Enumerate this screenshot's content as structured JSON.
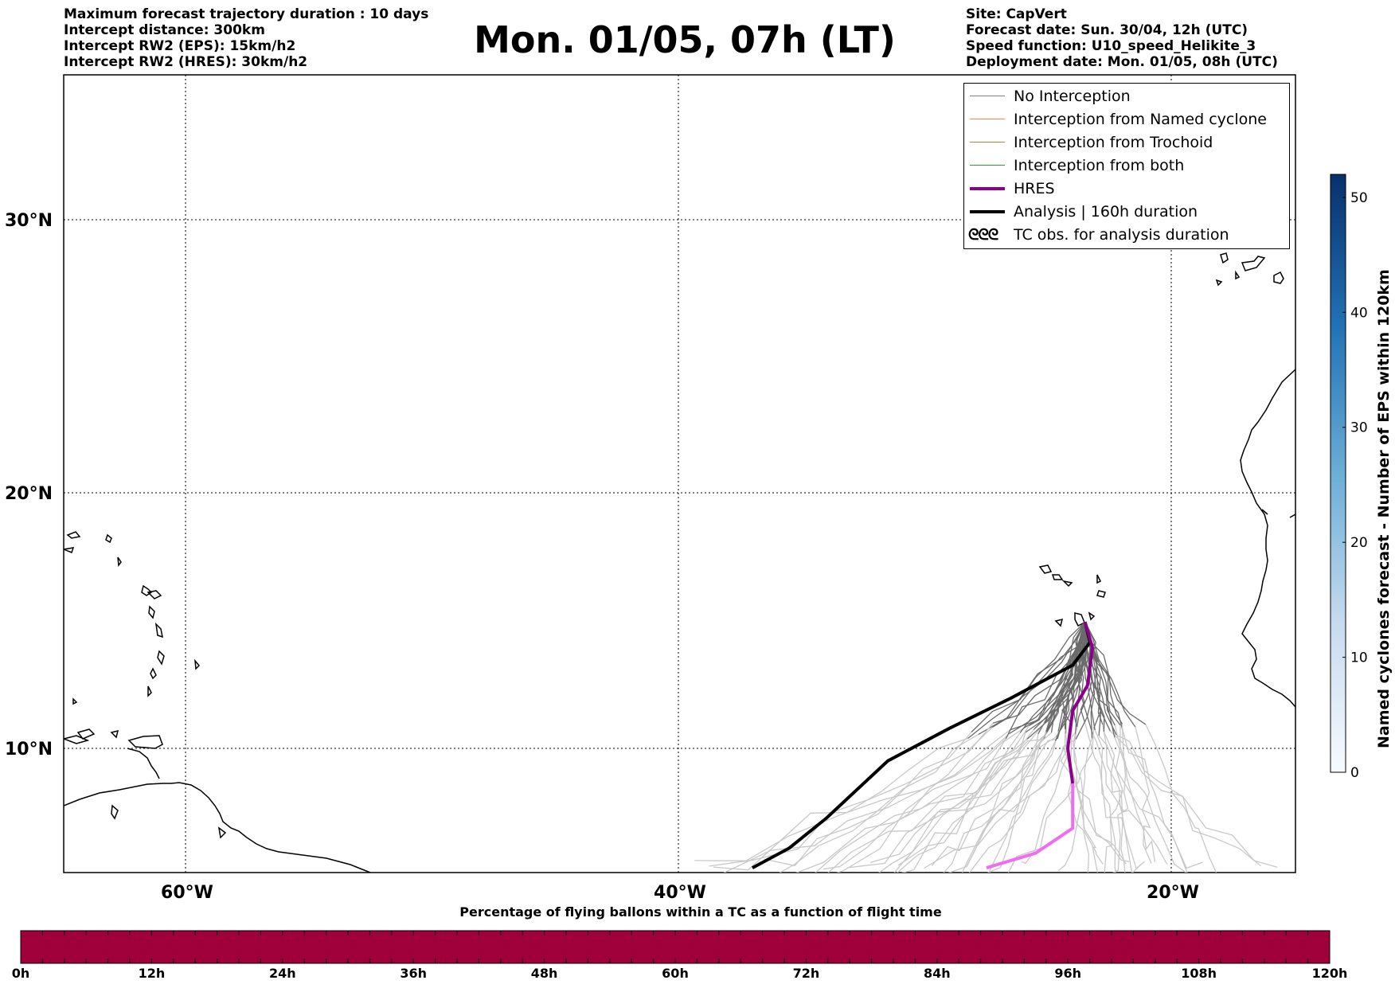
{
  "header": {
    "title": "Mon. 01/05, 07h (LT)",
    "left_lines": [
      "Maximum forecast trajectory duration : 10 days",
      "Intercept distance: 300km",
      "Intercept RW2 (EPS):  15km/h2",
      "Intercept RW2 (HRES): 30km/h2"
    ],
    "right_lines": [
      "Site: CapVert",
      "Forecast date: Sun. 30/04, 12h (UTC)",
      "Speed function: U10_speed_Helikite_3",
      "Deployment date: Mon. 01/05, 08h (UTC)"
    ]
  },
  "map": {
    "lat_ticks": [
      "30°N",
      "20°N",
      "10°N"
    ],
    "lon_ticks": [
      "60°W",
      "40°W",
      "20°W"
    ],
    "lat_ticks_values": [
      30,
      20,
      10
    ],
    "lon_tick_values": [
      -60,
      -40,
      -20
    ],
    "lon_range": [
      -65,
      -15
    ],
    "lat_range": [
      5.2,
      34.5
    ],
    "grid": "dotted"
  },
  "legend": {
    "placement": "top-right",
    "items": [
      {
        "label": "No Interception",
        "color": "#808080",
        "style": "thin"
      },
      {
        "label": "Interception from Named cyclone",
        "color": "#ff7f50",
        "style": "thin"
      },
      {
        "label": "Interception from Trochoid",
        "color": "#998a3a",
        "style": "thin"
      },
      {
        "label": "Interception from both",
        "color": "#2ca02c",
        "style": "thin"
      },
      {
        "label": "HRES",
        "color": "#8b008b",
        "style": "thick"
      },
      {
        "label": "Analysis | 160h duration",
        "color": "#000000",
        "style": "thick"
      },
      {
        "label": "TC obs. for analysis duration",
        "symbol": "ᘓᘓᘓ"
      }
    ]
  },
  "trajectories": {
    "site_lonlat": [
      -23.5,
      15.0
    ],
    "analysis": [
      [
        -23.5,
        15.0
      ],
      [
        -23.3,
        14.2
      ],
      [
        -24.0,
        13.3
      ],
      [
        -26.5,
        12.0
      ],
      [
        -29.0,
        10.8
      ],
      [
        -31.5,
        9.5
      ],
      [
        -34.0,
        7.2
      ],
      [
        -35.5,
        6.0
      ],
      [
        -37.0,
        5.2
      ]
    ],
    "hres": [
      [
        -23.5,
        15.0
      ],
      [
        -23.2,
        14.0
      ],
      [
        -23.4,
        12.5
      ],
      [
        -24.0,
        11.5
      ],
      [
        -24.2,
        10.0
      ],
      [
        -24.0,
        8.6
      ],
      [
        -24.0,
        6.8
      ],
      [
        -25.5,
        5.8
      ],
      [
        -27.5,
        5.2
      ]
    ]
  },
  "colorbar_right": {
    "label": "Named cyclones forecast - Number of EPS within 120km",
    "ticks": [
      0,
      10,
      20,
      30,
      40,
      50
    ],
    "range": [
      0,
      52
    ],
    "colors": [
      "#f7fbff",
      "#08306b"
    ]
  },
  "colorbar_bottom": {
    "title": "Percentage of flying ballons within a TC as a function of flight time",
    "ticks": [
      "0h",
      "12h",
      "24h",
      "36h",
      "48h",
      "60h",
      "72h",
      "84h",
      "96h",
      "108h",
      "120h"
    ],
    "color": "#a0003a"
  }
}
